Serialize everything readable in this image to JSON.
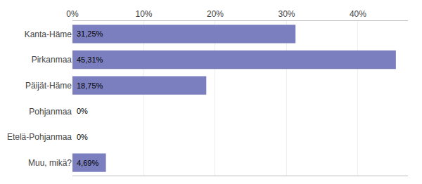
{
  "chart_data": {
    "type": "bar",
    "orientation": "horizontal",
    "categories": [
      "Kanta-Häme",
      "Pirkanmaa",
      "Päijät-Häme",
      "Pohjanmaa",
      "Etelä-Pohjanmaa",
      "Muu, mikä?"
    ],
    "values": [
      31.25,
      45.31,
      18.75,
      0.0,
      0.0,
      4.69
    ],
    "value_labels": [
      "31,25%",
      "45,31%",
      "18,75%",
      "0%",
      "0%",
      "4,69%"
    ],
    "data_labels": true,
    "color": "#7b7fbf",
    "xlim": [
      0,
      47
    ],
    "xticks": [
      {
        "value": 0,
        "label": "0%"
      },
      {
        "value": 10,
        "label": "10%"
      },
      {
        "value": 20,
        "label": "20%"
      },
      {
        "value": 30,
        "label": "30%"
      },
      {
        "value": 40,
        "label": "40%"
      }
    ],
    "grid": true
  }
}
